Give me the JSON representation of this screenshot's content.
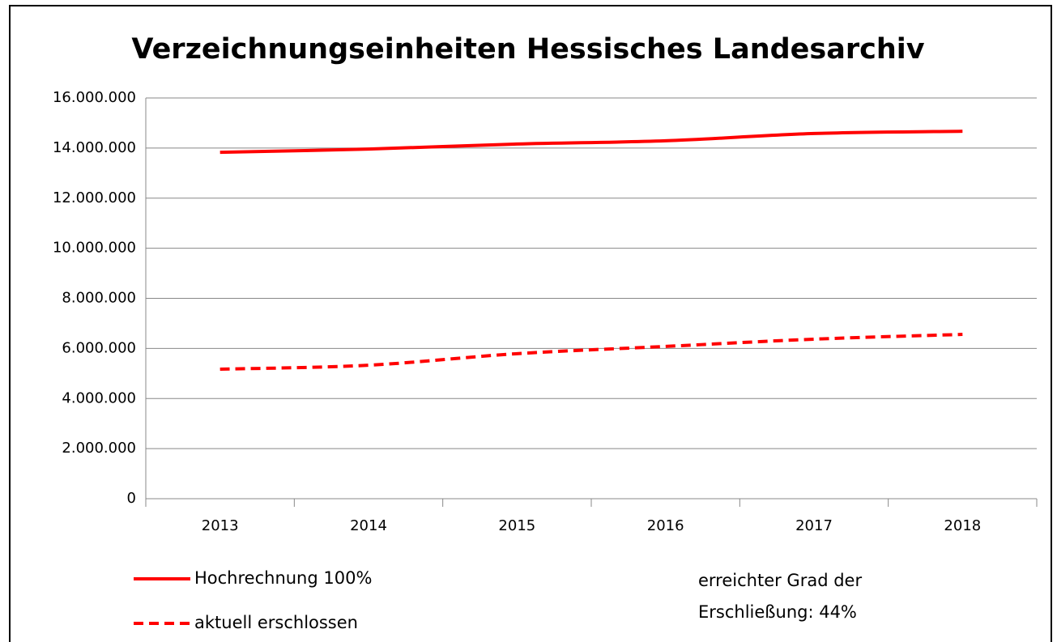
{
  "chart_data": {
    "type": "line",
    "title": "Verzeichnungseinheiten Hessisches Landesarchiv",
    "categories": [
      "2013",
      "2014",
      "2015",
      "2016",
      "2017",
      "2018"
    ],
    "series": [
      {
        "name": "Hochrechnung 100%",
        "color": "#ff0000",
        "line_style": "solid",
        "values": [
          13830000,
          13960000,
          14160000,
          14290000,
          14580000,
          14670000
        ]
      },
      {
        "name": "aktuell erschlossen",
        "color": "#ff0000",
        "line_style": "dashed",
        "values": [
          5170000,
          5330000,
          5790000,
          6080000,
          6370000,
          6560000
        ]
      }
    ],
    "ylim": [
      0,
      16000000
    ],
    "yticks": [
      0,
      {
        "value": 2000000,
        "label": "2.000.000"
      },
      {
        "value": 4000000,
        "label": "4.000.000"
      },
      {
        "value": 6000000,
        "label": "6.000.000"
      },
      {
        "value": 8000000,
        "label": "8.000.000"
      },
      {
        "value": 10000000,
        "label": "10.000.000"
      },
      {
        "value": 12000000,
        "label": "12.000.000"
      },
      {
        "value": 14000000,
        "label": "14.000.000"
      },
      {
        "value": 16000000,
        "label": "16.000.000"
      }
    ],
    "grid": true,
    "legend": "bottom-left",
    "annotation": [
      "erreichter Grad der",
      "Erschließung: 44%"
    ]
  }
}
